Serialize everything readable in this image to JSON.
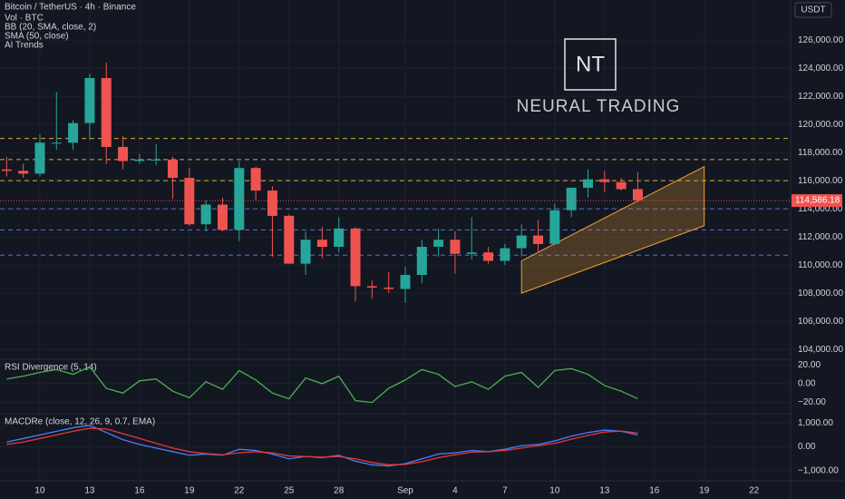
{
  "chart_data": {
    "type": "candlestick",
    "title": "Bitcoin / TetherUS · 4h · Binance",
    "legend_items": [
      "Vol · BTC",
      "BB (20, SMA, close, 2)",
      "SMA (50, close)",
      "AI Trends"
    ],
    "currency": "USDT",
    "brand_mark": "NT",
    "brand_name": "NEURAL TRADING",
    "categories": [
      null,
      null,
      null,
      null,
      null,
      null,
      null,
      null,
      null,
      null,
      null,
      null,
      null,
      null,
      null,
      null,
      null,
      null,
      null,
      null,
      null,
      null,
      null,
      null,
      null,
      null,
      null,
      null,
      null,
      null,
      null,
      null,
      null,
      null,
      null,
      null,
      null,
      null,
      null
    ],
    "open": [
      116800,
      116700,
      116500,
      118700,
      118700,
      120100,
      123300,
      118400,
      117400,
      117500,
      117500,
      116200,
      112900,
      114300,
      112500,
      116900,
      115300,
      113500,
      110100,
      111800,
      111300,
      112600,
      108500,
      108400,
      108300,
      109300,
      111300,
      111800,
      110800,
      110900,
      110300,
      111200,
      112100,
      111500,
      113900,
      115500,
      116100,
      115900,
      115400
    ],
    "high": [
      117700,
      117200,
      119300,
      122300,
      120300,
      123600,
      124400,
      119200,
      117900,
      118600,
      117700,
      116900,
      114600,
      114800,
      117400,
      117000,
      115600,
      113600,
      112400,
      112700,
      113400,
      112700,
      108900,
      109500,
      109900,
      111800,
      112600,
      112400,
      113400,
      111300,
      111500,
      112900,
      113200,
      114400,
      115500,
      116800,
      116700,
      116200,
      116600
    ],
    "low": [
      116300,
      116200,
      116300,
      118200,
      118200,
      118900,
      117200,
      116800,
      117200,
      117100,
      114700,
      112800,
      112400,
      112400,
      111700,
      114600,
      110600,
      110200,
      109300,
      110500,
      110900,
      107400,
      107600,
      108000,
      107300,
      108700,
      110600,
      109400,
      110400,
      110100,
      110000,
      110600,
      110900,
      111400,
      113400,
      114800,
      115200,
      115300,
      114500
    ],
    "close": [
      116700,
      116500,
      118700,
      118700,
      120100,
      123300,
      118400,
      117400,
      117500,
      117500,
      116200,
      112900,
      114300,
      112500,
      116900,
      115300,
      113500,
      110100,
      111800,
      111300,
      112600,
      108500,
      108400,
      108300,
      109300,
      111300,
      111800,
      110800,
      110900,
      110300,
      111200,
      112100,
      111500,
      113900,
      115500,
      116100,
      115900,
      115400,
      114600
    ],
    "up_color": "#26a69a",
    "down_color": "#ef5350",
    "last_price": {
      "value": 114586.18,
      "label": "114,586.18"
    },
    "levels": [
      {
        "value": 119000,
        "color": "#d4b030"
      },
      {
        "value": 117500,
        "color": "#d4b030"
      },
      {
        "value": 116000,
        "color": "#d4b030"
      },
      {
        "value": 114000,
        "color": "#5a6fd0"
      },
      {
        "value": 112500,
        "color": "#5a6fd0"
      },
      {
        "value": 110700,
        "color": "#5a6fd0"
      }
    ],
    "channel": {
      "x": [
        31,
        42
      ],
      "lower": [
        108000,
        112800
      ],
      "upper": [
        110300,
        117000
      ],
      "color": "#f0a030"
    },
    "xlim": [
      -0.4,
      47.2
    ],
    "xticks": [
      {
        "value": 2,
        "label": "10"
      },
      {
        "value": 5,
        "label": "13"
      },
      {
        "value": 8,
        "label": "16"
      },
      {
        "value": 11,
        "label": "19"
      },
      {
        "value": 14,
        "label": "22"
      },
      {
        "value": 17,
        "label": "25"
      },
      {
        "value": 20,
        "label": "28"
      },
      {
        "value": 24,
        "label": "Sep"
      },
      {
        "value": 27,
        "label": "4"
      },
      {
        "value": 30,
        "label": "7"
      },
      {
        "value": 33,
        "label": "10"
      },
      {
        "value": 36,
        "label": "13"
      },
      {
        "value": 39,
        "label": "16"
      },
      {
        "value": 42,
        "label": "19"
      },
      {
        "value": 45,
        "label": "22"
      }
    ],
    "ylim": [
      103300,
      128850
    ],
    "yticks": [
      {
        "value": 104000,
        "label": "104,000.00"
      },
      {
        "value": 106000,
        "label": "106,000.00"
      },
      {
        "value": 108000,
        "label": "108,000.00"
      },
      {
        "value": 110000,
        "label": "110,000.00"
      },
      {
        "value": 112000,
        "label": "112,000.00"
      },
      {
        "value": 114000,
        "label": "114,000.00"
      },
      {
        "value": 116000,
        "label": "116,000.00"
      },
      {
        "value": 118000,
        "label": "118,000.00"
      },
      {
        "value": 120000,
        "label": "120,000.00"
      },
      {
        "value": 122000,
        "label": "122,000.00"
      },
      {
        "value": 124000,
        "label": "124,000.00"
      },
      {
        "value": 126000,
        "label": "126,000.00"
      }
    ],
    "rsi": {
      "title": "RSI Divergence (5, 14)",
      "color": "#4caf50",
      "values": [
        5,
        8,
        12,
        15,
        10,
        18,
        -5,
        -10,
        3,
        5,
        -8,
        -15,
        2,
        -6,
        14,
        4,
        -10,
        -16,
        6,
        0,
        8,
        -18,
        -20,
        -5,
        4,
        15,
        10,
        -3,
        2,
        -6,
        8,
        12,
        -4,
        14,
        16,
        10,
        -2,
        -8,
        -16
      ],
      "ylim": [
        -32,
        26
      ],
      "yticks": [
        {
          "value": 20,
          "label": "20.00"
        },
        {
          "value": 0,
          "label": "0.00"
        },
        {
          "value": -20,
          "label": "−20.00"
        }
      ]
    },
    "macd": {
      "title": "MACDRe (close, 12, 26, 9, 0.7, EMA)",
      "series": [
        {
          "color": "#4a7dff",
          "values": [
            200,
            350,
            500,
            650,
            800,
            900,
            600,
            300,
            100,
            -50,
            -200,
            -350,
            -300,
            -350,
            -100,
            -150,
            -300,
            -500,
            -400,
            -450,
            -350,
            -600,
            -750,
            -800,
            -700,
            -500,
            -300,
            -250,
            -150,
            -200,
            -100,
            50,
            100,
            250,
            450,
            600,
            700,
            650,
            500
          ]
        },
        {
          "color": "#e53935",
          "values": [
            100,
            200,
            350,
            500,
            650,
            780,
            750,
            550,
            350,
            150,
            -50,
            -200,
            -280,
            -330,
            -250,
            -200,
            -250,
            -380,
            -400,
            -430,
            -400,
            -500,
            -650,
            -750,
            -730,
            -620,
            -450,
            -330,
            -220,
            -200,
            -150,
            -50,
            50,
            150,
            320,
            480,
            620,
            660,
            580
          ]
        }
      ],
      "ylim": [
        -1420,
        1385
      ],
      "yticks": [
        {
          "value": 1000,
          "label": "1,000.00"
        },
        {
          "value": 0,
          "label": "0.00"
        },
        {
          "value": -1000,
          "label": "−1,000.00"
        }
      ]
    }
  }
}
